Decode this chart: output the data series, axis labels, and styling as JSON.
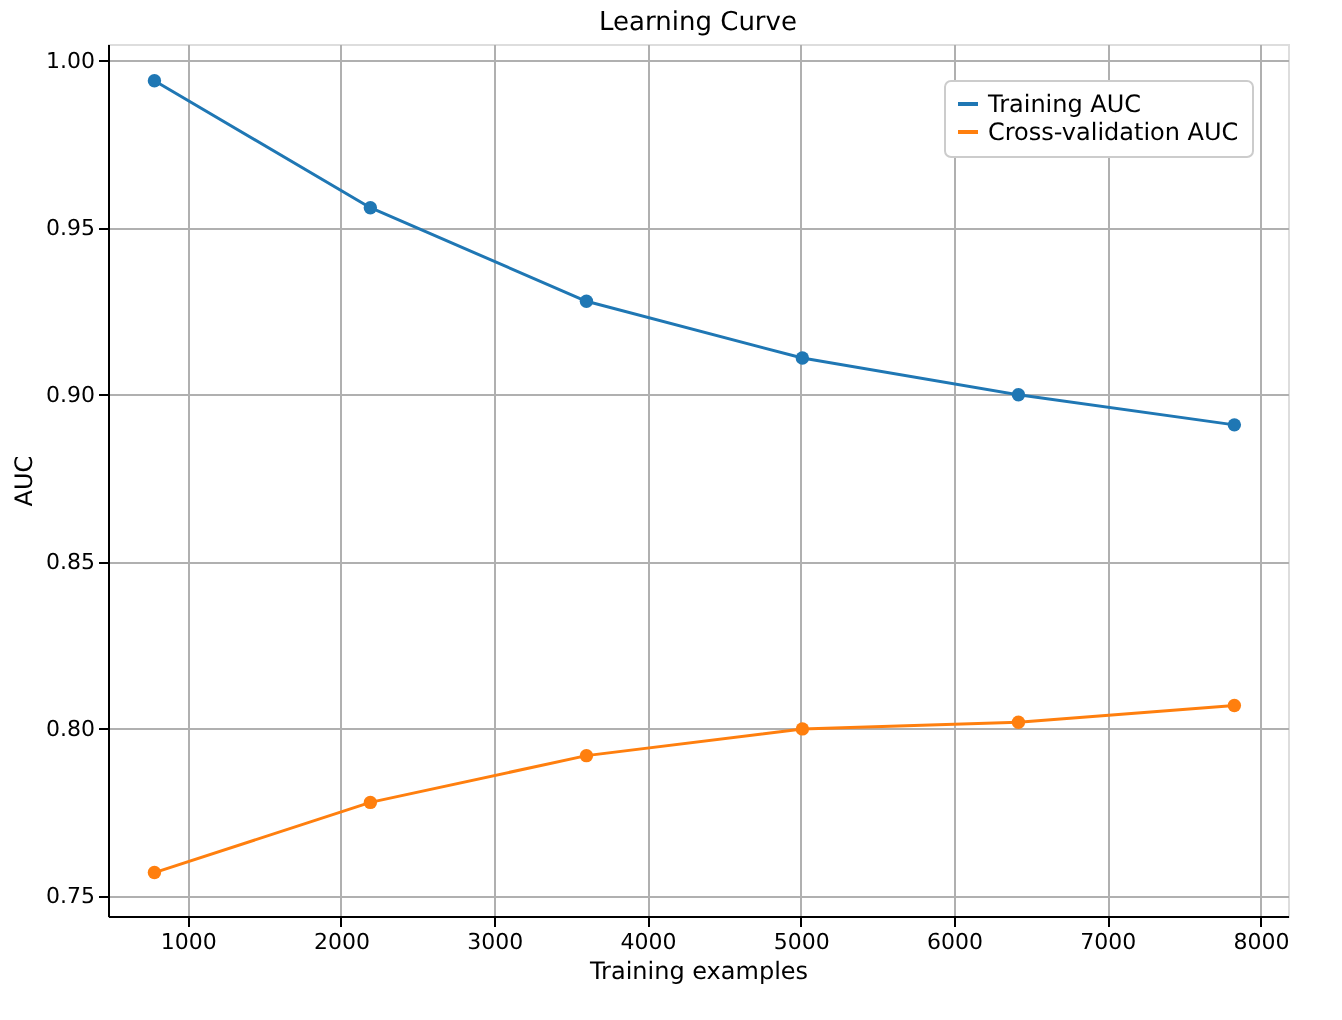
{
  "chart_data": {
    "type": "line",
    "title": "Learning Curve",
    "xlabel": "Training examples",
    "ylabel": "AUC",
    "x": [
      783,
      2192,
      3602,
      5011,
      6421,
      7830
    ],
    "series": [
      {
        "name": "Training AUC",
        "color": "#1f77b4",
        "values": [
          0.994,
          0.956,
          0.928,
          0.911,
          0.9,
          0.891
        ]
      },
      {
        "name": "Cross-validation AUC",
        "color": "#ff7f0e",
        "values": [
          0.757,
          0.778,
          0.792,
          0.8,
          0.802,
          0.807
        ]
      }
    ],
    "xlim": [
      480,
      8180
    ],
    "ylim": [
      0.744,
      1.005
    ],
    "xticks": [
      1000,
      2000,
      3000,
      4000,
      5000,
      6000,
      7000,
      8000
    ],
    "yticks": [
      {
        "value": 0.75,
        "label": "0.75"
      },
      {
        "value": 0.8,
        "label": "0.80"
      },
      {
        "value": 0.85,
        "label": "0.85"
      },
      {
        "value": 0.9,
        "label": "0.90"
      },
      {
        "value": 0.95,
        "label": "0.95"
      },
      {
        "value": 1.0,
        "label": "1.00"
      }
    ],
    "grid": true,
    "legend": "top right",
    "marker": "circle",
    "line_style": "solid"
  }
}
